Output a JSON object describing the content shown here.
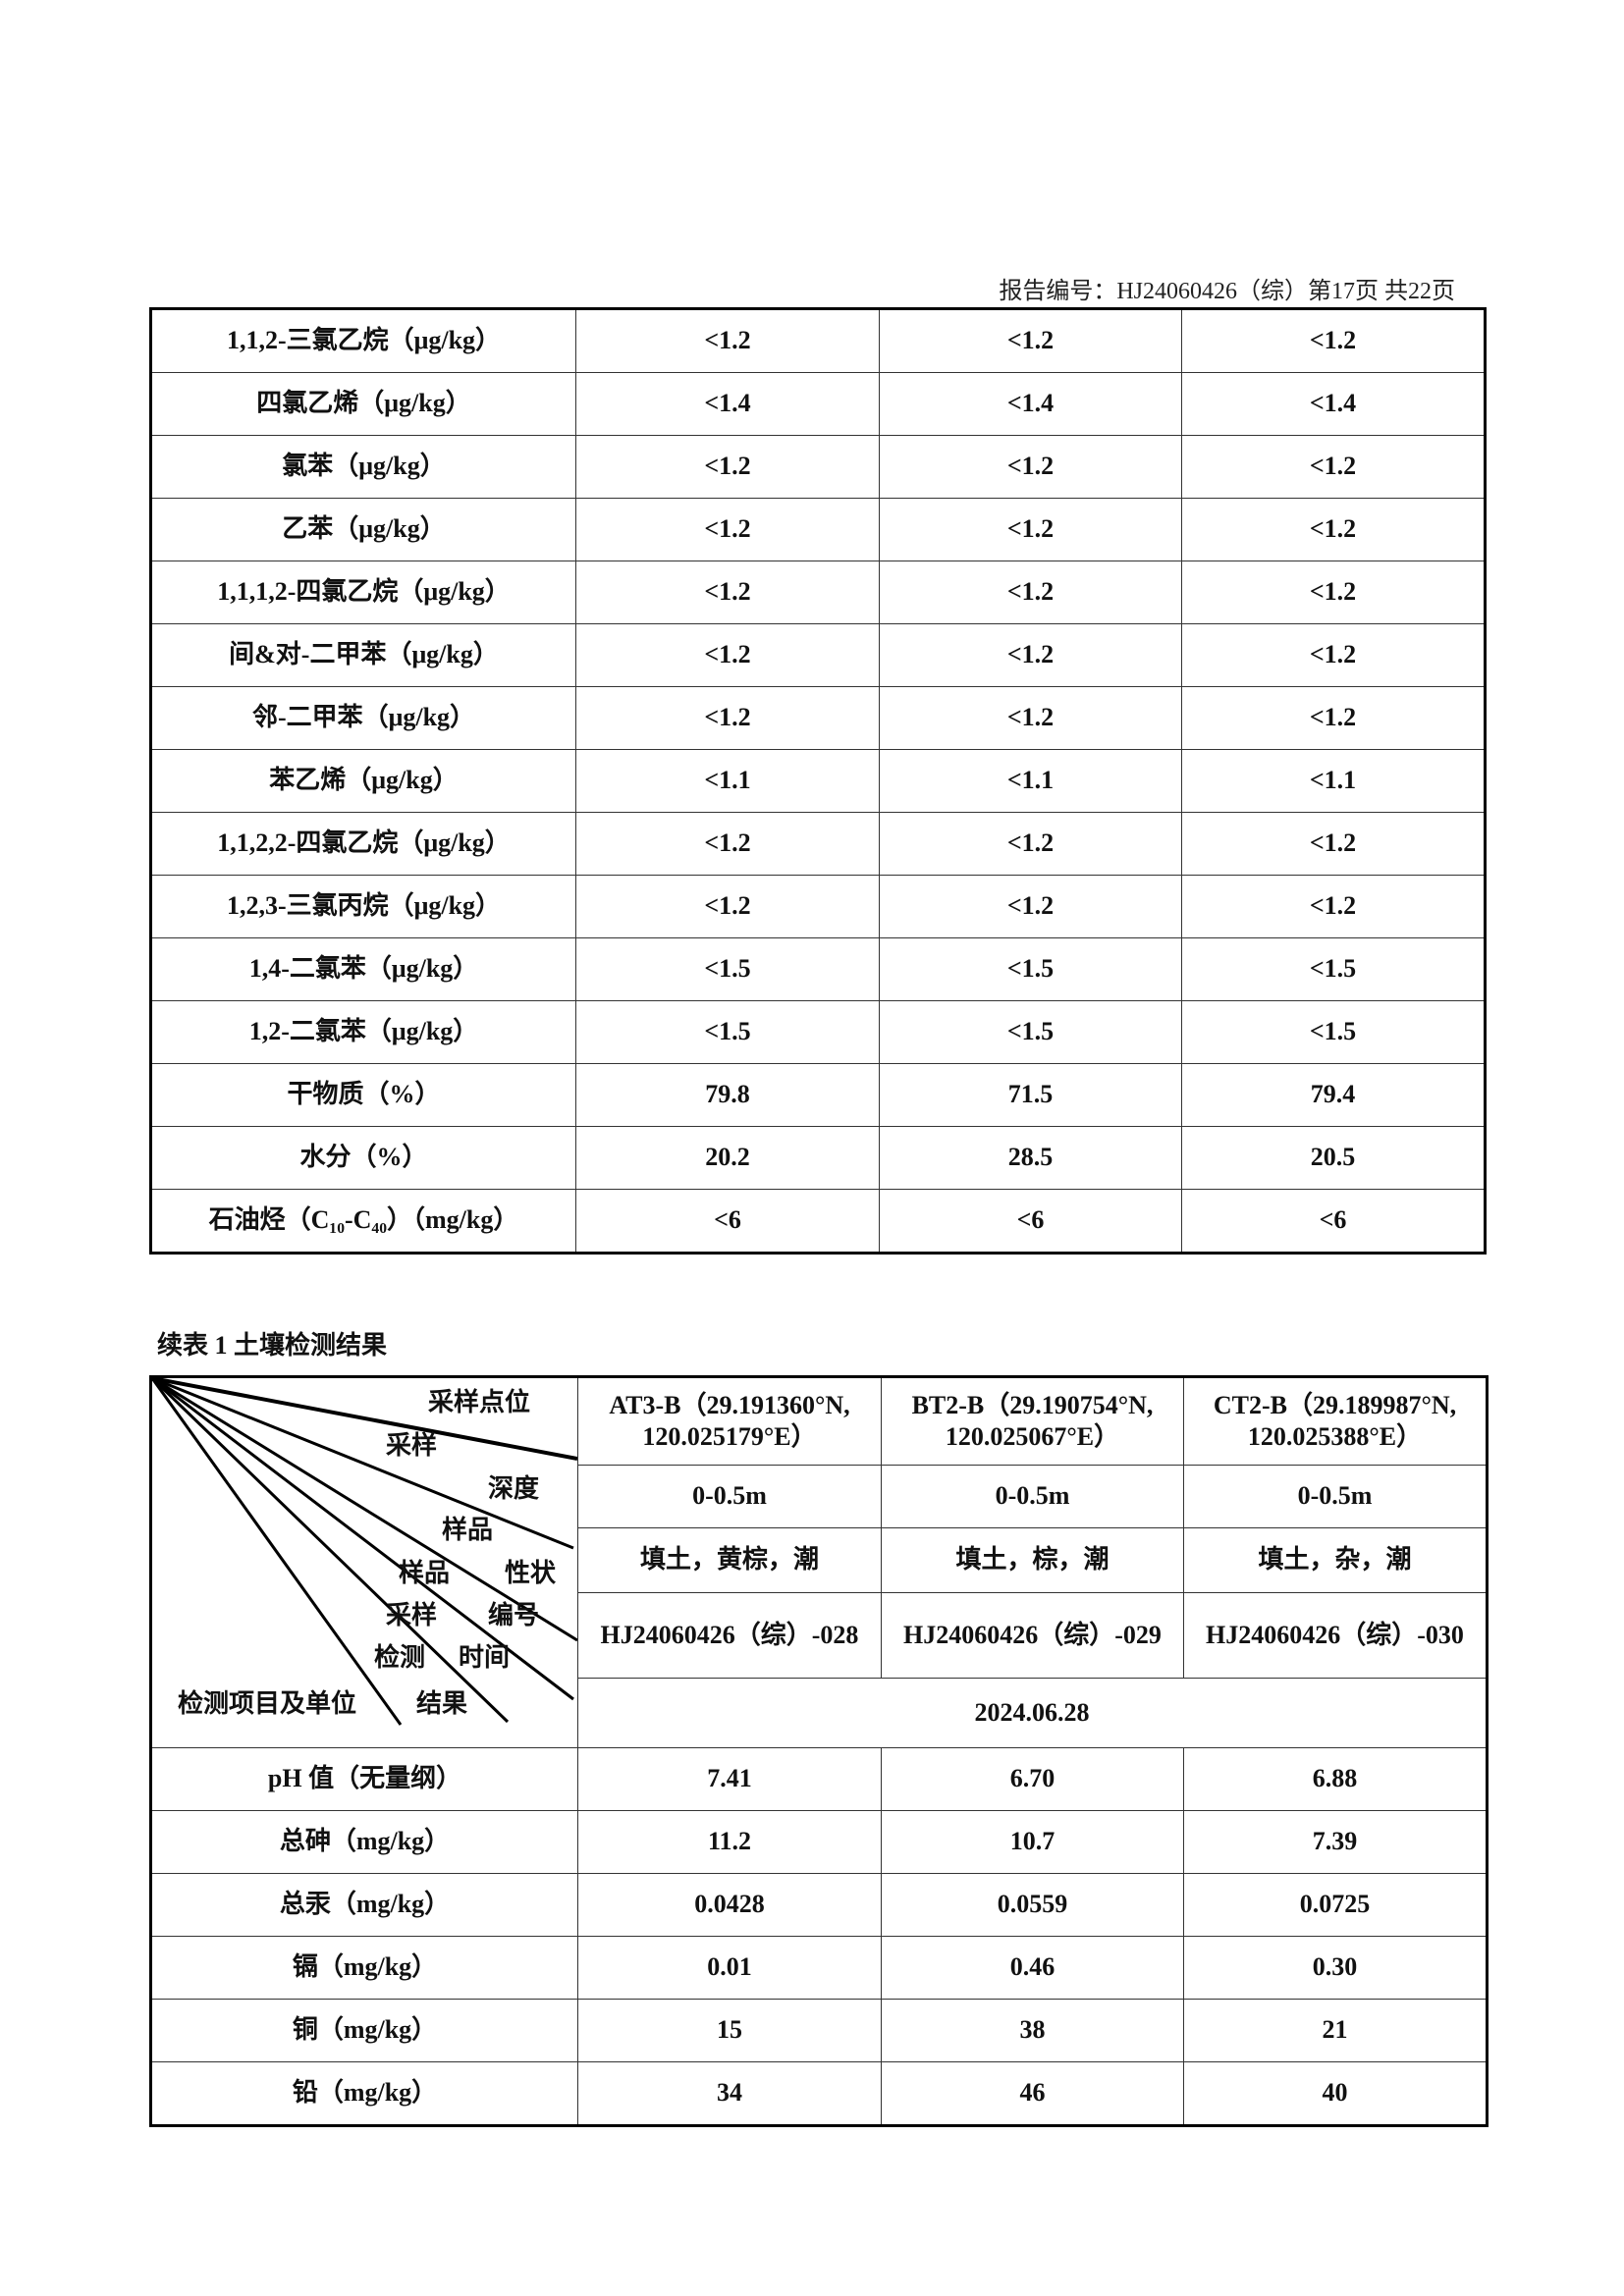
{
  "header": {
    "report_number": "报告编号：HJ24060426（综）第17页  共22页"
  },
  "table1": {
    "rows": [
      [
        "1,1,2-三氯乙烷（μg/kg）",
        "<1.2",
        "<1.2",
        "<1.2"
      ],
      [
        "四氯乙烯（μg/kg）",
        "<1.4",
        "<1.4",
        "<1.4"
      ],
      [
        "氯苯（μg/kg）",
        "<1.2",
        "<1.2",
        "<1.2"
      ],
      [
        "乙苯（μg/kg）",
        "<1.2",
        "<1.2",
        "<1.2"
      ],
      [
        "1,1,1,2-四氯乙烷（μg/kg）",
        "<1.2",
        "<1.2",
        "<1.2"
      ],
      [
        "间&对-二甲苯（μg/kg）",
        "<1.2",
        "<1.2",
        "<1.2"
      ],
      [
        "邻-二甲苯（μg/kg）",
        "<1.2",
        "<1.2",
        "<1.2"
      ],
      [
        "苯乙烯（μg/kg）",
        "<1.1",
        "<1.1",
        "<1.1"
      ],
      [
        "1,1,2,2-四氯乙烷（μg/kg）",
        "<1.2",
        "<1.2",
        "<1.2"
      ],
      [
        "1,2,3-三氯丙烷（μg/kg）",
        "<1.2",
        "<1.2",
        "<1.2"
      ],
      [
        "1,4-二氯苯（μg/kg）",
        "<1.5",
        "<1.5",
        "<1.5"
      ],
      [
        "1,2-二氯苯（μg/kg）",
        "<1.5",
        "<1.5",
        "<1.5"
      ],
      [
        "干物质（%）",
        "79.8",
        "71.5",
        "79.4"
      ],
      [
        "水分（%）",
        "20.2",
        "28.5",
        "20.5"
      ],
      [
        "石油烃（C₁₀-C₄₀）（mg/kg）",
        "<6",
        "<6",
        "<6"
      ]
    ]
  },
  "table2": {
    "caption": "续表 1 土壤检测结果",
    "diagonal_labels": {
      "sampling_point": "采样点位",
      "sampling_1": "采样",
      "depth": "深度",
      "sample_1": "样品",
      "sample_2": "样品",
      "property": "性状",
      "sampling_2": "采样",
      "number": "编号",
      "test_1": "检测",
      "time": "时间",
      "item_unit": "检测项目及单位",
      "result": "结果"
    },
    "points": [
      {
        "name": "AT3-B（29.191360°N,",
        "coord": "120.025179°E）",
        "depth": "0-0.5m",
        "property": "填土，黄棕，潮",
        "number": "HJ24060426（综）-028"
      },
      {
        "name": "BT2-B（29.190754°N,",
        "coord": "120.025067°E）",
        "depth": "0-0.5m",
        "property": "填土，棕，潮",
        "number": "HJ24060426（综）-029"
      },
      {
        "name": "CT2-B（29.189987°N,",
        "coord": "120.025388°E）",
        "depth": "0-0.5m",
        "property": "填土，杂，潮",
        "number": "HJ24060426（综）-030"
      }
    ],
    "test_date": "2024.06.28",
    "rows": [
      [
        "pH 值（无量纲）",
        "7.41",
        "6.70",
        "6.88"
      ],
      [
        "总砷（mg/kg）",
        "11.2",
        "10.7",
        "7.39"
      ],
      [
        "总汞（mg/kg）",
        "0.0428",
        "0.0559",
        "0.0725"
      ],
      [
        "镉（mg/kg）",
        "0.01",
        "0.46",
        "0.30"
      ],
      [
        "铜（mg/kg）",
        "15",
        "38",
        "21"
      ],
      [
        "铅（mg/kg）",
        "34",
        "46",
        "40"
      ]
    ]
  }
}
